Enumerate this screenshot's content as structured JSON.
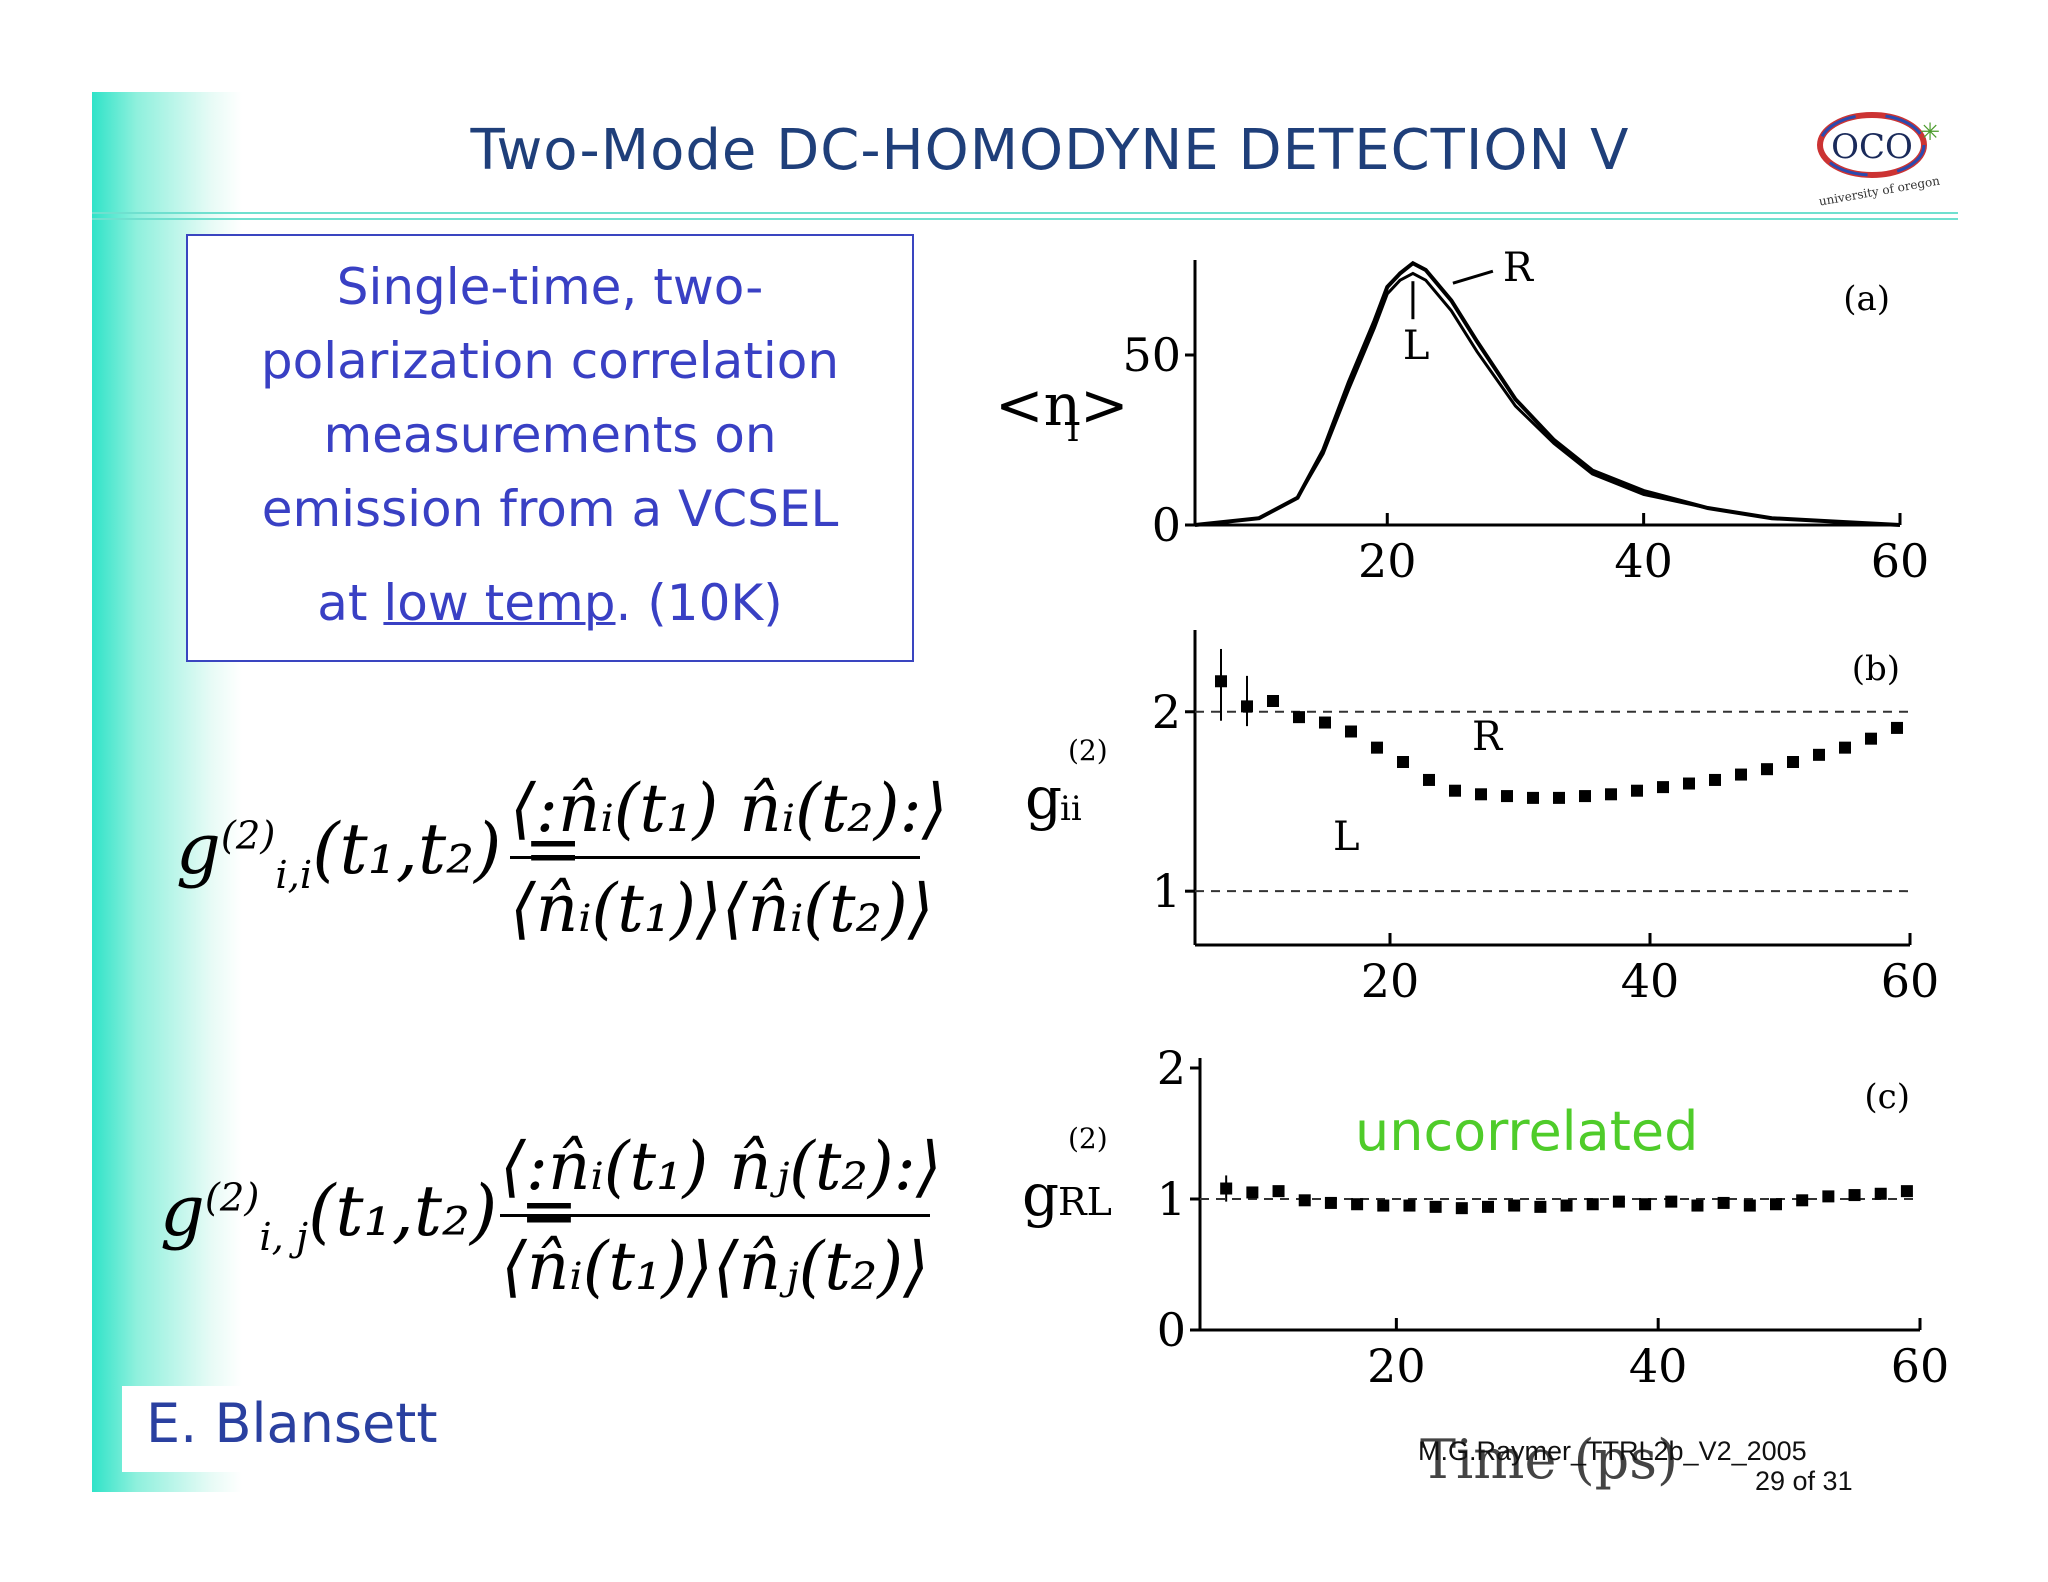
{
  "slide": {
    "title": "Two-Mode DC-HOMODYNE DETECTION V",
    "logo": {
      "text": "OCO",
      "subtext": "university of oregon"
    },
    "box_lines": [
      "Single-time, two-",
      "polarization correlation",
      "measurements on",
      "emission from a VCSEL"
    ],
    "box_last": {
      "prefix": "at ",
      "underlined": "low temp",
      "suffix": ". (10K)"
    },
    "author": "E. Blansett",
    "footer_line1": "M.G.Raymer_TTRL2b_V2_2005",
    "footer_line2": "29 of 31"
  },
  "equations": [
    {
      "lhs": "g",
      "sup": "(2)",
      "sub": "i,i",
      "args": "(t₁,t₂) =",
      "numerator": "⟨:n̂ᵢ(t₁) n̂ᵢ(t₂):⟩",
      "denominator": "⟨n̂ᵢ(t₁)⟩⟨n̂ᵢ(t₂)⟩"
    },
    {
      "lhs": "g",
      "sup": "(2)",
      "sub": "i, j",
      "args": "(t₁,t₂) =",
      "numerator": "⟨:n̂ᵢ(t₁) n̂ⱼ(t₂):⟩",
      "denominator": "⟨n̂ᵢ(t₁)⟩⟨n̂ⱼ(t₂)⟩"
    }
  ],
  "chart_data": [
    {
      "type": "line",
      "panel": "(a)",
      "ylabel": "<n_i>",
      "xlim": [
        5,
        60
      ],
      "ylim": [
        0,
        75
      ],
      "xticks": [
        "20",
        "40",
        "60"
      ],
      "yticks": [
        "0",
        "50"
      ],
      "series": [
        {
          "name": "R",
          "x": [
            5,
            10,
            13,
            15,
            17,
            19,
            20,
            21,
            22,
            23,
            25,
            27,
            30,
            33,
            36,
            40,
            45,
            50,
            55,
            60
          ],
          "values": [
            0,
            2,
            8,
            22,
            42,
            60,
            70,
            74,
            77,
            75,
            66,
            54,
            37,
            25,
            16,
            10,
            5,
            2,
            1,
            0
          ]
        },
        {
          "name": "L",
          "x": [
            5,
            10,
            13,
            15,
            17,
            19,
            20,
            21,
            22,
            23,
            25,
            27,
            30,
            33,
            36,
            40,
            45,
            50,
            55,
            60
          ],
          "values": [
            0,
            2,
            8,
            21,
            40,
            58,
            68,
            72,
            74,
            72,
            63,
            51,
            35,
            24,
            15,
            9,
            5,
            2,
            1,
            0
          ]
        }
      ],
      "annotations": [
        "R",
        "L",
        "(a)"
      ]
    },
    {
      "type": "scatter",
      "panel": "(b)",
      "ylabel": "g_ii^(2)",
      "xlim": [
        5,
        60
      ],
      "ylim": [
        0.7,
        2.4
      ],
      "xticks": [
        "20",
        "40",
        "60"
      ],
      "yticks": [
        "1",
        "2"
      ],
      "reference_lines": [
        1,
        2
      ],
      "x": [
        7,
        9,
        11,
        13,
        15,
        17,
        19,
        21,
        23,
        25,
        27,
        29,
        31,
        33,
        35,
        37,
        39,
        41,
        43,
        45,
        47,
        49,
        51,
        53,
        55,
        57,
        59
      ],
      "values": [
        2.17,
        2.03,
        2.06,
        1.97,
        1.94,
        1.89,
        1.8,
        1.72,
        1.62,
        1.56,
        1.54,
        1.53,
        1.52,
        1.52,
        1.53,
        1.54,
        1.56,
        1.58,
        1.6,
        1.62,
        1.65,
        1.68,
        1.72,
        1.76,
        1.8,
        1.85,
        1.91
      ],
      "annotations": [
        "R",
        "L",
        "(b)"
      ]
    },
    {
      "type": "scatter",
      "panel": "(c)",
      "ylabel": "g_RL^(2)",
      "xlabel": "Time (ps)",
      "xlim": [
        5,
        60
      ],
      "ylim": [
        0,
        2
      ],
      "xticks": [
        "20",
        "40",
        "60"
      ],
      "yticks": [
        "0",
        "1",
        "2"
      ],
      "reference_lines": [
        1
      ],
      "x": [
        7,
        9,
        11,
        13,
        15,
        17,
        19,
        21,
        23,
        25,
        27,
        29,
        31,
        33,
        35,
        37,
        39,
        41,
        43,
        45,
        47,
        49,
        51,
        53,
        55,
        57,
        59
      ],
      "values": [
        1.08,
        1.05,
        1.06,
        0.99,
        0.97,
        0.96,
        0.95,
        0.95,
        0.94,
        0.93,
        0.94,
        0.95,
        0.94,
        0.95,
        0.96,
        0.98,
        0.96,
        0.98,
        0.95,
        0.97,
        0.95,
        0.96,
        0.99,
        1.02,
        1.03,
        1.04,
        1.06
      ],
      "annotations": [
        "uncorrelated",
        "(c)"
      ]
    }
  ]
}
